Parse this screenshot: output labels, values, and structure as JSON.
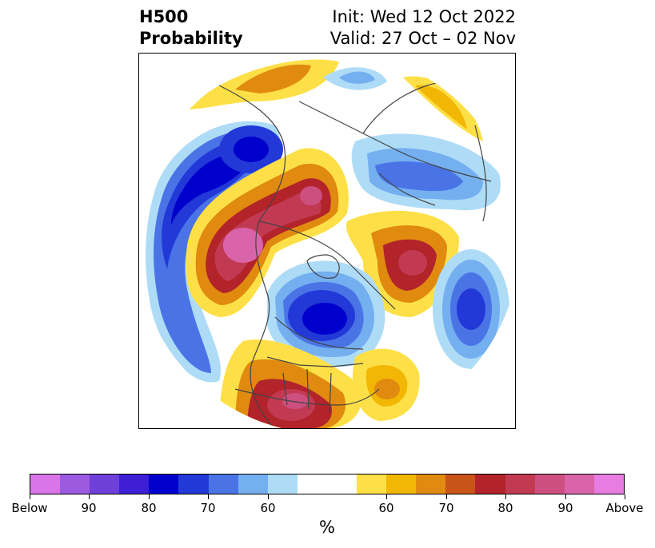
{
  "title": {
    "left_line1": "H500",
    "left_line2": "Probability",
    "right_line1": "Init: Wed 12 Oct 2022",
    "right_line2": "Valid: 27 Oct – 02 Nov"
  },
  "map": {
    "projection": "polar stereographic, Northern Hemisphere",
    "boundaries": "country and state/province borders, coastlines"
  },
  "colorbar": {
    "colors": [
      "#d975e8",
      "#9b5ae0",
      "#6f3fd9",
      "#3e1fd6",
      "#0000cc",
      "#2239d8",
      "#4a74e6",
      "#74aff0",
      "#aedcf7",
      "#ffffff",
      "#ffffff",
      "#fde047",
      "#f2b705",
      "#e08a0f",
      "#c9541a",
      "#b2232a",
      "#c23a52",
      "#cc4f80",
      "#d964aa",
      "#e87de1"
    ],
    "tick_labels": [
      "Below",
      "90",
      "80",
      "70",
      "60",
      "60",
      "70",
      "80",
      "90",
      "Above"
    ],
    "unit_label": "%"
  }
}
